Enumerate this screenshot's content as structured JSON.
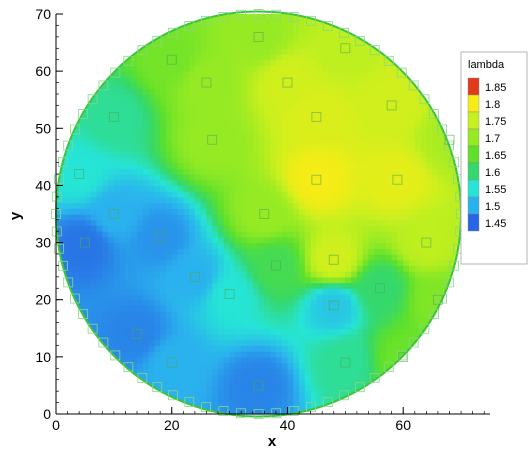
{
  "chart_data": {
    "type": "heatmap",
    "subtype": "contour-on-circular-domain",
    "xlabel": "x",
    "ylabel": "y",
    "xlim": [
      0,
      75
    ],
    "ylim": [
      0,
      70
    ],
    "x_ticks": [
      0,
      20,
      40,
      60
    ],
    "y_ticks": [
      0,
      10,
      20,
      30,
      40,
      50,
      60,
      70
    ],
    "x_tick_labels": [
      "0",
      "20",
      "40",
      "60"
    ],
    "y_tick_labels": [
      "0",
      "10",
      "20",
      "30",
      "40",
      "50",
      "60",
      "70"
    ],
    "domain": {
      "shape": "circle",
      "center": [
        35,
        35
      ],
      "radius": 35
    },
    "legend": {
      "title": "lambda",
      "placement": "right",
      "levels": [
        1.85,
        1.8,
        1.75,
        1.7,
        1.65,
        1.6,
        1.55,
        1.5,
        1.45
      ],
      "labels": [
        "1.85",
        "1.8",
        "1.75",
        "1.7",
        "1.65",
        "1.6",
        "1.55",
        "1.5",
        "1.45"
      ],
      "colors": [
        "#e23a1c",
        "#f6ec16",
        "#c8f01e",
        "#96ea24",
        "#5ee02c",
        "#34d86c",
        "#26e4d6",
        "#2ab2ee",
        "#2866e4"
      ]
    },
    "field_points": [
      {
        "x": 45,
        "y": 41,
        "value": 1.8
      },
      {
        "x": 45,
        "y": 52,
        "value": 1.77
      },
      {
        "x": 40,
        "y": 58,
        "value": 1.76
      },
      {
        "x": 58,
        "y": 54,
        "value": 1.76
      },
      {
        "x": 59,
        "y": 41,
        "value": 1.78
      },
      {
        "x": 48,
        "y": 27,
        "value": 1.76
      },
      {
        "x": 64,
        "y": 30,
        "value": 1.74
      },
      {
        "x": 27,
        "y": 48,
        "value": 1.7
      },
      {
        "x": 26,
        "y": 58,
        "value": 1.7
      },
      {
        "x": 35,
        "y": 66,
        "value": 1.7
      },
      {
        "x": 20,
        "y": 62,
        "value": 1.67
      },
      {
        "x": 10,
        "y": 52,
        "value": 1.58
      },
      {
        "x": 4,
        "y": 42,
        "value": 1.55
      },
      {
        "x": 36,
        "y": 35,
        "value": 1.7
      },
      {
        "x": 38,
        "y": 26,
        "value": 1.62
      },
      {
        "x": 30,
        "y": 21,
        "value": 1.55
      },
      {
        "x": 24,
        "y": 24,
        "value": 1.5
      },
      {
        "x": 18,
        "y": 31,
        "value": 1.48
      },
      {
        "x": 5,
        "y": 30,
        "value": 1.46
      },
      {
        "x": 10,
        "y": 35,
        "value": 1.5
      },
      {
        "x": 14,
        "y": 14,
        "value": 1.47
      },
      {
        "x": 20,
        "y": 9,
        "value": 1.5
      },
      {
        "x": 35,
        "y": 5,
        "value": 1.47
      },
      {
        "x": 48,
        "y": 19,
        "value": 1.52
      },
      {
        "x": 50,
        "y": 9,
        "value": 1.58
      },
      {
        "x": 56,
        "y": 22,
        "value": 1.6
      },
      {
        "x": 66,
        "y": 20,
        "value": 1.68
      },
      {
        "x": 60,
        "y": 10,
        "value": 1.66
      },
      {
        "x": 68,
        "y": 48,
        "value": 1.72
      },
      {
        "x": 50,
        "y": 64,
        "value": 1.74
      }
    ],
    "grid": false
  }
}
